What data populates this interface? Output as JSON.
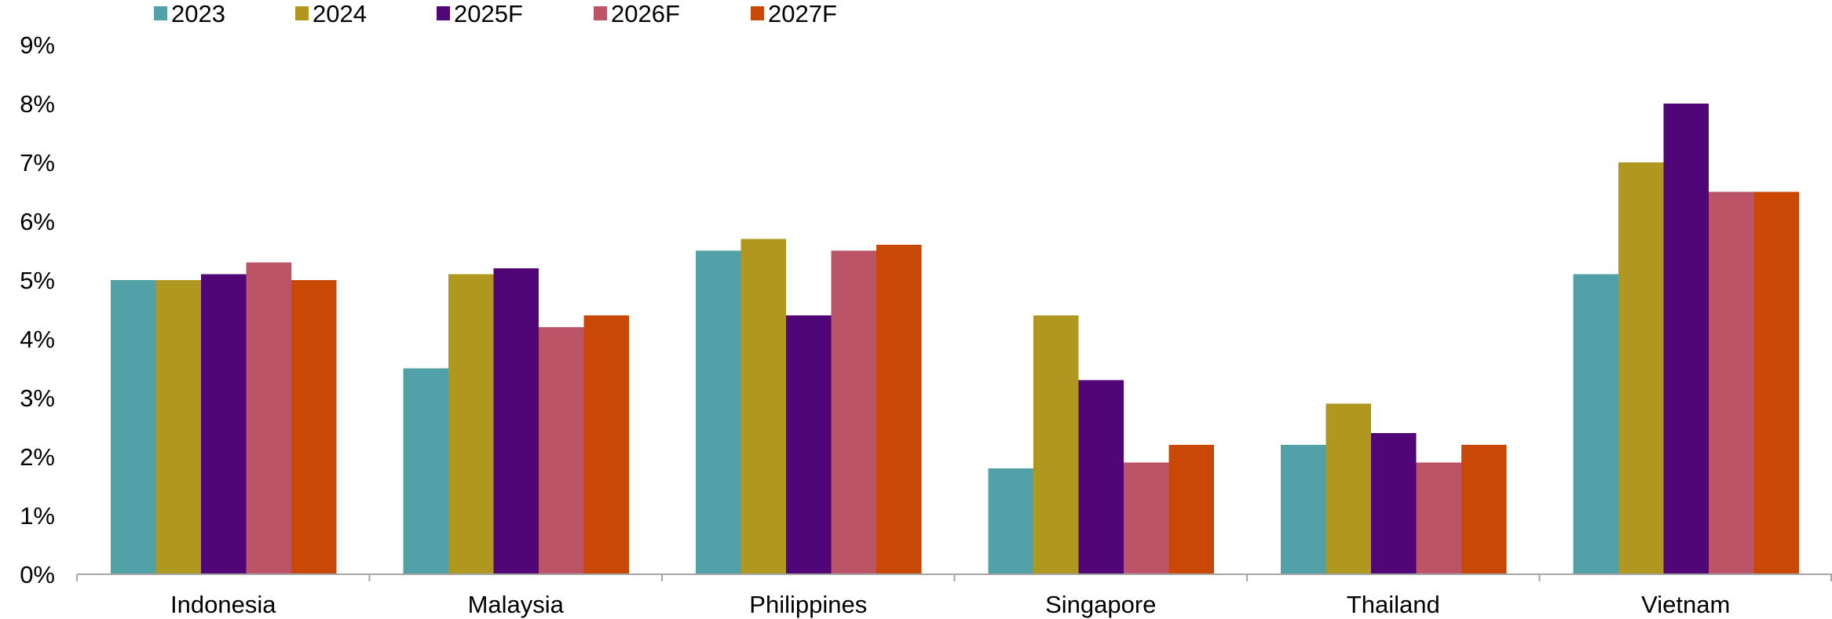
{
  "chart_data": {
    "type": "bar",
    "title": "",
    "xlabel": "",
    "ylabel": "",
    "ylim": [
      0,
      9
    ],
    "y_ticks": [
      "0%",
      "1%",
      "2%",
      "3%",
      "4%",
      "5%",
      "6%",
      "7%",
      "8%",
      "9%"
    ],
    "grid": false,
    "legend_position": "top-left",
    "categories": [
      "Indonesia",
      "Malaysia",
      "Philippines",
      "Singapore",
      "Thailand",
      "Vietnam"
    ],
    "series": [
      {
        "name": "2023",
        "color": "#52A1A8",
        "values": [
          5.0,
          3.5,
          5.5,
          1.8,
          2.2,
          5.1
        ]
      },
      {
        "name": "2024",
        "color": "#B0971F",
        "values": [
          5.0,
          5.1,
          5.7,
          4.4,
          2.9,
          7.0
        ]
      },
      {
        "name": "2025F",
        "color": "#510677",
        "values": [
          5.1,
          5.2,
          4.4,
          3.3,
          2.4,
          8.0
        ]
      },
      {
        "name": "2026F",
        "color": "#BC5468",
        "values": [
          5.3,
          4.2,
          5.5,
          1.9,
          1.9,
          6.5
        ]
      },
      {
        "name": "2027F",
        "color": "#C94805",
        "values": [
          5.0,
          4.4,
          5.6,
          2.2,
          2.2,
          6.5
        ]
      }
    ]
  }
}
